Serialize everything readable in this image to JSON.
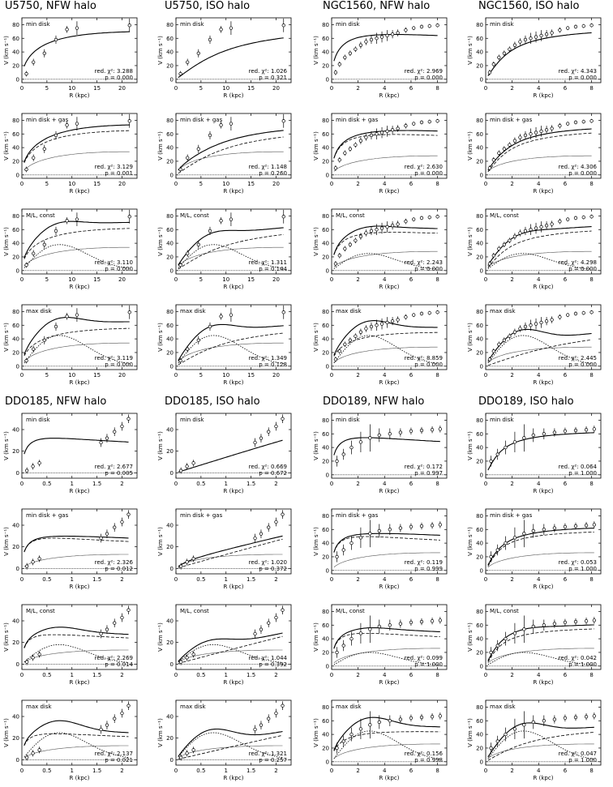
{
  "galaxy_titles": [
    "U5750, NFW halo",
    "U5750, ISO halo",
    "NGC1560, NFW halo",
    "NGC1560, ISO halo",
    "DDO185, NFW halo",
    "DDO185, ISO halo",
    "DDO189, NFW halo",
    "DDO189, ISO halo"
  ],
  "panel_labels": [
    "min disk",
    "min disk + gas",
    "M/L, const",
    "max disk"
  ],
  "axis": {
    "ylabel": "V (km s⁻¹)",
    "xlabel": "R (kpc)"
  },
  "stat_labels": {
    "chi": "red. χ²:",
    "p": "p ="
  },
  "chart_data": [
    {
      "galaxy": "U5750",
      "halo": "NFW",
      "type": "line",
      "xlim": [
        0,
        23
      ],
      "ylim": [
        -5,
        90
      ],
      "xticks": [
        0,
        5,
        10,
        15,
        20
      ],
      "yticks": [
        0,
        20,
        40,
        60,
        80
      ],
      "obs": {
        "r": [
          0.9,
          2.3,
          4.5,
          6.8,
          9,
          11,
          21.5
        ],
        "v": [
          8,
          25,
          38,
          58,
          73,
          75,
          79
        ],
        "err": [
          4,
          5,
          6,
          6,
          5,
          10,
          10
        ]
      },
      "models": [
        {
          "label": "min disk",
          "chi2": "3.288",
          "p": "0.000",
          "halo_vmax": 88,
          "halo_rs": 14,
          "gas_vmax": 0,
          "star_vmax": 0
        },
        {
          "label": "min disk + gas",
          "chi2": "3.129",
          "p": "0.001",
          "halo_vmax": 82,
          "halo_rs": 14,
          "gas_vmax": 36,
          "star_vmax": 0
        },
        {
          "label": "M/L, const",
          "chi2": "3.110",
          "p": "0.000",
          "halo_vmax": 78,
          "halo_rs": 14,
          "gas_vmax": 36,
          "star_vmax": 38
        },
        {
          "label": "max disk",
          "chi2": "3.119",
          "p": "0.000",
          "halo_vmax": 70,
          "halo_rs": 14,
          "gas_vmax": 36,
          "star_vmax": 45
        }
      ]
    },
    {
      "galaxy": "U5750",
      "halo": "ISO",
      "type": "line",
      "xlim": [
        0,
        23
      ],
      "ylim": [
        -5,
        90
      ],
      "xticks": [
        0,
        5,
        10,
        15,
        20
      ],
      "yticks": [
        0,
        20,
        40,
        60,
        80
      ],
      "obs": {
        "r": [
          0.9,
          2.3,
          4.5,
          6.8,
          9,
          11,
          21.5
        ],
        "v": [
          8,
          25,
          38,
          58,
          73,
          75,
          79
        ],
        "err": [
          4,
          5,
          6,
          6,
          5,
          10,
          10
        ]
      },
      "models": [
        {
          "label": "min disk",
          "chi2": "1.026",
          "p": "0.321",
          "halo_vmax": 85,
          "halo_rs": 9,
          "gas_vmax": 0,
          "star_vmax": 0
        },
        {
          "label": "min disk + gas",
          "chi2": "1.148",
          "p": "0.260",
          "halo_vmax": 78,
          "halo_rs": 9,
          "gas_vmax": 36,
          "star_vmax": 0
        },
        {
          "label": "M/L, const",
          "chi2": "1.311",
          "p": "0.144",
          "halo_vmax": 74,
          "halo_rs": 9,
          "gas_vmax": 36,
          "star_vmax": 38
        },
        {
          "label": "max disk",
          "chi2": "1.349",
          "p": "0.128",
          "halo_vmax": 68,
          "halo_rs": 9,
          "gas_vmax": 36,
          "star_vmax": 45
        }
      ]
    },
    {
      "galaxy": "NGC1560",
      "halo": "NFW",
      "type": "line",
      "xlim": [
        0,
        8.7
      ],
      "ylim": [
        -5,
        90
      ],
      "xticks": [
        0,
        2,
        4,
        6,
        8
      ],
      "yticks": [
        0,
        20,
        40,
        60,
        80
      ],
      "obs": {
        "r": [
          0.3,
          0.6,
          1,
          1.4,
          1.8,
          2.2,
          2.6,
          3,
          3.4,
          3.8,
          4.2,
          4.6,
          5,
          5.6,
          6.2,
          6.8,
          7.4,
          8
        ],
        "v": [
          10,
          22,
          32,
          38,
          44,
          50,
          55,
          58,
          60,
          62,
          64,
          66,
          68,
          72,
          75,
          77,
          78,
          79
        ],
        "err": [
          4,
          4,
          4,
          4,
          4,
          5,
          5,
          6,
          8,
          8,
          8,
          6,
          5,
          4,
          3,
          3,
          3,
          3
        ]
      },
      "models": [
        {
          "label": "min disk",
          "chi2": "2.969",
          "p": "0.000",
          "halo_vmax": 82,
          "halo_rs": 2.2,
          "gas_vmax": 0,
          "star_vmax": 0
        },
        {
          "label": "min disk + gas",
          "chi2": "2.630",
          "p": "0.000",
          "halo_vmax": 74,
          "halo_rs": 2.2,
          "gas_vmax": 30,
          "star_vmax": 0
        },
        {
          "label": "M/L, const",
          "chi2": "2.243",
          "p": "0.000",
          "halo_vmax": 70,
          "halo_rs": 2.2,
          "gas_vmax": 30,
          "star_vmax": 25
        },
        {
          "label": "max disk",
          "chi2": "8.859",
          "p": "0.000",
          "halo_vmax": 62,
          "halo_rs": 4.5,
          "gas_vmax": 30,
          "star_vmax": 45
        }
      ]
    },
    {
      "galaxy": "NGC1560",
      "halo": "ISO",
      "type": "line",
      "xlim": [
        0,
        8.7
      ],
      "ylim": [
        -5,
        90
      ],
      "xticks": [
        0,
        2,
        4,
        6,
        8
      ],
      "yticks": [
        0,
        20,
        40,
        60,
        80
      ],
      "obs": {
        "r": [
          0.3,
          0.6,
          1,
          1.4,
          1.8,
          2.2,
          2.6,
          3,
          3.4,
          3.8,
          4.2,
          4.6,
          5,
          5.6,
          6.2,
          6.8,
          7.4,
          8
        ],
        "v": [
          10,
          22,
          32,
          38,
          44,
          50,
          55,
          58,
          60,
          62,
          64,
          66,
          68,
          72,
          75,
          77,
          78,
          79
        ],
        "err": [
          4,
          4,
          4,
          4,
          4,
          5,
          5,
          6,
          8,
          8,
          8,
          6,
          5,
          4,
          3,
          3,
          3,
          3
        ]
      },
      "models": [
        {
          "label": "min disk",
          "chi2": "4.343",
          "p": "0.000",
          "halo_vmax": 80,
          "halo_rs": 1.6,
          "gas_vmax": 0,
          "star_vmax": 0
        },
        {
          "label": "min disk + gas",
          "chi2": "4.306",
          "p": "0.000",
          "halo_vmax": 72,
          "halo_rs": 1.6,
          "gas_vmax": 30,
          "star_vmax": 0
        },
        {
          "label": "M/L, const",
          "chi2": "4.298",
          "p": "0.000",
          "halo_vmax": 68,
          "halo_rs": 1.6,
          "gas_vmax": 30,
          "star_vmax": 25
        },
        {
          "label": "max disk",
          "chi2": "2.445",
          "p": "0.000",
          "halo_vmax": 70,
          "halo_rs": 6,
          "gas_vmax": 30,
          "star_vmax": 45
        }
      ]
    },
    {
      "galaxy": "DDO185",
      "halo": "NFW",
      "type": "line",
      "xlim": [
        0,
        2.3
      ],
      "ylim": [
        -5,
        55
      ],
      "xticks": [
        0,
        0.5,
        1,
        1.5,
        2
      ],
      "yticks": [
        0,
        20,
        40
      ],
      "obs": {
        "r": [
          0.1,
          0.22,
          0.35,
          1.58,
          1.7,
          1.85,
          2.0,
          2.13
        ],
        "v": [
          2,
          6,
          9,
          28,
          32,
          38,
          43,
          50
        ],
        "err": [
          3,
          3,
          3,
          4,
          4,
          4,
          4,
          4
        ]
      },
      "models": [
        {
          "label": "min disk",
          "chi2": "2.677",
          "p": "0.005",
          "halo_vmax": 40,
          "halo_rs": 0.3,
          "gas_vmax": 0,
          "star_vmax": 0
        },
        {
          "label": "min disk + gas",
          "chi2": "2.326",
          "p": "0.012",
          "halo_vmax": 35,
          "halo_rs": 0.3,
          "gas_vmax": 15,
          "star_vmax": 0
        },
        {
          "label": "M/L, const",
          "chi2": "2.269",
          "p": "0.014",
          "halo_vmax": 34,
          "halo_rs": 0.3,
          "gas_vmax": 15,
          "star_vmax": 18
        },
        {
          "label": "max disk",
          "chi2": "2.137",
          "p": "0.021",
          "halo_vmax": 30,
          "halo_rs": 0.3,
          "gas_vmax": 15,
          "star_vmax": 25
        }
      ]
    },
    {
      "galaxy": "DDO185",
      "halo": "ISO",
      "type": "line",
      "xlim": [
        0,
        2.3
      ],
      "ylim": [
        -5,
        55
      ],
      "xticks": [
        0,
        0.5,
        1,
        1.5,
        2
      ],
      "yticks": [
        0,
        20,
        40
      ],
      "obs": {
        "r": [
          0.1,
          0.22,
          0.35,
          1.58,
          1.7,
          1.85,
          2.0,
          2.13
        ],
        "v": [
          2,
          6,
          9,
          28,
          32,
          38,
          43,
          50
        ],
        "err": [
          3,
          3,
          3,
          4,
          4,
          4,
          4,
          4
        ]
      },
      "models": [
        {
          "label": "min disk",
          "chi2": "0.669",
          "p": "0.672",
          "halo_vmax": 200,
          "halo_rs": 8,
          "gas_vmax": 0,
          "star_vmax": 0
        },
        {
          "label": "min disk + gas",
          "chi2": "1.020",
          "p": "0.372",
          "halo_vmax": 180,
          "halo_rs": 8,
          "gas_vmax": 15,
          "star_vmax": 0
        },
        {
          "label": "M/L, const",
          "chi2": "1.044",
          "p": "0.392",
          "halo_vmax": 170,
          "halo_rs": 8,
          "gas_vmax": 15,
          "star_vmax": 18
        },
        {
          "label": "max disk",
          "chi2": "1.321",
          "p": "0.257",
          "halo_vmax": 150,
          "halo_rs": 8,
          "gas_vmax": 15,
          "star_vmax": 25
        }
      ]
    },
    {
      "galaxy": "DDO189",
      "halo": "NFW",
      "type": "line",
      "xlim": [
        0,
        8.7
      ],
      "ylim": [
        -5,
        90
      ],
      "xticks": [
        0,
        2,
        4,
        6,
        8
      ],
      "yticks": [
        0,
        20,
        40,
        60,
        80
      ],
      "obs": {
        "r": [
          0.4,
          0.9,
          1.5,
          2.2,
          2.9,
          3.6,
          4.4,
          5.2,
          6,
          6.8,
          7.6,
          8.2
        ],
        "v": [
          20,
          30,
          40,
          48,
          54,
          58,
          60,
          62,
          64,
          65,
          66,
          67
        ],
        "err": [
          8,
          8,
          10,
          15,
          20,
          10,
          8,
          6,
          5,
          5,
          5,
          5
        ]
      },
      "models": [
        {
          "label": "min disk",
          "chi2": "0.172",
          "p": "0.997",
          "halo_vmax": 68,
          "halo_rs": 1.2,
          "gas_vmax": 0,
          "star_vmax": 0
        },
        {
          "label": "min disk + gas",
          "chi2": "0.119",
          "p": "0.999",
          "halo_vmax": 62,
          "halo_rs": 1.2,
          "gas_vmax": 28,
          "star_vmax": 0
        },
        {
          "label": "M/L, const",
          "chi2": "0.099",
          "p": "1.000",
          "halo_vmax": 60,
          "halo_rs": 1.2,
          "gas_vmax": 28,
          "star_vmax": 20
        },
        {
          "label": "max disk",
          "chi2": "0.156",
          "p": "0.998",
          "halo_vmax": 55,
          "halo_rs": 3,
          "gas_vmax": 28,
          "star_vmax": 45
        }
      ]
    },
    {
      "galaxy": "DDO189",
      "halo": "ISO",
      "type": "line",
      "xlim": [
        0,
        8.7
      ],
      "ylim": [
        -5,
        90
      ],
      "xticks": [
        0,
        2,
        4,
        6,
        8
      ],
      "yticks": [
        0,
        20,
        40,
        60,
        80
      ],
      "obs": {
        "r": [
          0.4,
          0.9,
          1.5,
          2.2,
          2.9,
          3.6,
          4.4,
          5.2,
          6,
          6.8,
          7.6,
          8.2
        ],
        "v": [
          20,
          30,
          40,
          48,
          54,
          58,
          60,
          62,
          64,
          65,
          66,
          67
        ],
        "err": [
          8,
          8,
          10,
          15,
          20,
          10,
          8,
          6,
          5,
          5,
          5,
          5
        ]
      },
      "models": [
        {
          "label": "min disk",
          "chi2": "0.064",
          "p": "1.000",
          "halo_vmax": 68,
          "halo_rs": 1.0,
          "gas_vmax": 0,
          "star_vmax": 0
        },
        {
          "label": "min disk + gas",
          "chi2": "0.053",
          "p": "1.000",
          "halo_vmax": 62,
          "halo_rs": 1.0,
          "gas_vmax": 28,
          "star_vmax": 0
        },
        {
          "label": "M/L, const",
          "chi2": "0.042",
          "p": "1.000",
          "halo_vmax": 60,
          "halo_rs": 1.0,
          "gas_vmax": 28,
          "star_vmax": 20
        },
        {
          "label": "max disk",
          "chi2": "0.047",
          "p": "1.000",
          "halo_vmax": 58,
          "halo_rs": 3,
          "gas_vmax": 28,
          "star_vmax": 45
        }
      ]
    }
  ]
}
